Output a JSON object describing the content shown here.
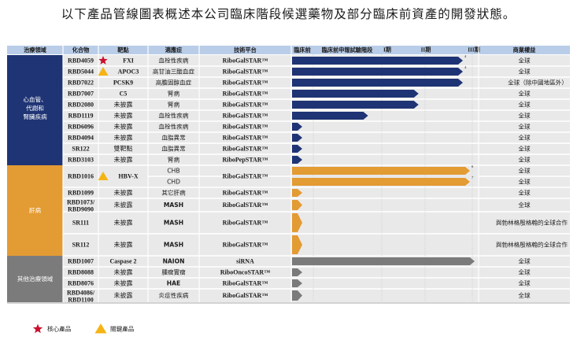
{
  "title": "以下產品管線圖表概述本公司臨床階段候選藥物及部分臨床前資產的開發狀態。",
  "headers": [
    "治療領域",
    "化合物",
    "靶點",
    "適應症",
    "技術平台",
    "臨床前",
    "臨床前申報試驗階段",
    "I期",
    "II期",
    "III期",
    "商業權益"
  ],
  "groups": [
    {
      "label": "心血管、代謝和腎臟疾病",
      "color": "#1f3474"
    },
    {
      "label": "肝病",
      "color": "#e39b34"
    },
    {
      "label": "其他治療領域",
      "color": "#7b7b7b"
    }
  ],
  "rows": [
    {
      "compound": "RBD4059",
      "marker": "star",
      "target": "FXI",
      "indication": "血栓性疾病",
      "platform": "RiboGalSTAR™",
      "rights": "全球",
      "group": 0
    },
    {
      "compound": "RBD5044",
      "marker": "triangle",
      "target": "APOC3",
      "indication": "高甘油三酯血症",
      "platform": "RiboGalSTAR™",
      "rights": "全球",
      "group": 0
    },
    {
      "compound": "RBD7022",
      "marker": "",
      "target": "PCSK9",
      "indication": "高膽固醇血症",
      "platform": "RiboGalSTAR™",
      "rights": "全球（除中國地區外）",
      "group": 0
    },
    {
      "compound": "RBD7007",
      "marker": "",
      "target": "C5",
      "indication": "腎病",
      "platform": "RiboGalSTAR™",
      "rights": "全球",
      "group": 0
    },
    {
      "compound": "RBD2080",
      "marker": "",
      "target": "未披露",
      "indication": "腎病",
      "platform": "RiboGalSTAR™",
      "rights": "全球",
      "group": 0
    },
    {
      "compound": "RBD1119",
      "marker": "",
      "target": "未披露",
      "indication": "血栓性疾病",
      "platform": "RiboGalSTAR™",
      "rights": "全球",
      "group": 0
    },
    {
      "compound": "RBD6096",
      "marker": "",
      "target": "未披露",
      "indication": "血栓性疾病",
      "platform": "RiboGalSTAR™",
      "rights": "全球",
      "group": 0
    },
    {
      "compound": "RBD4094",
      "marker": "",
      "target": "未披露",
      "indication": "血脂異常",
      "platform": "RiboGalSTAR™",
      "rights": "全球",
      "group": 0
    },
    {
      "compound": "SR122",
      "marker": "",
      "target": "雙靶點",
      "indication": "血脂異常",
      "platform": "RiboGalSTAR™",
      "rights": "全球",
      "group": 0
    },
    {
      "compound": "RBD3103",
      "marker": "",
      "target": "未披露",
      "indication": "腎病",
      "platform": "RiboPepSTAR™",
      "rights": "全球",
      "group": 0
    },
    {
      "compound": "RBD1016",
      "marker": "triangle",
      "target": "HBV-X",
      "indication": "CHB",
      "platform": "RiboGalSTAR™",
      "rights": "全球",
      "group": 1
    },
    {
      "compound": "",
      "marker": "",
      "target": "",
      "indication": "CHD",
      "platform": "",
      "rights": "全球",
      "group": 1
    },
    {
      "compound": "RBD1099",
      "marker": "",
      "target": "未披露",
      "indication": "其它肝病",
      "platform": "RiboGalSTAR™",
      "rights": "全球",
      "group": 1
    },
    {
      "compound": "RBD1073/ RBD9090",
      "marker": "",
      "target": "未披露",
      "indication": "MASH",
      "platform": "RiboGalSTAR™",
      "rights": "全球",
      "group": 1
    },
    {
      "compound": "SR111",
      "marker": "",
      "target": "未披露",
      "indication": "MASH",
      "platform": "RiboGalSTAR™",
      "rights": "與勃林格殷格翰的全球合作",
      "group": 1
    },
    {
      "compound": "SR112",
      "marker": "",
      "target": "未披露",
      "indication": "MASH",
      "platform": "RiboGalSTAR™",
      "rights": "與勃林格殷格翰的全球合作",
      "group": 1
    },
    {
      "compound": "RBD1007",
      "marker": "",
      "target": "Caspase 2",
      "indication": "NAION",
      "platform": "siRNA",
      "rights": "全球",
      "group": 2
    },
    {
      "compound": "RBD8088",
      "marker": "",
      "target": "未披露",
      "indication": "腫瘤實瘤",
      "platform": "RiboOncoSTAR™",
      "rights": "全球",
      "group": 2
    },
    {
      "compound": "RBD8076",
      "marker": "",
      "target": "未披露",
      "indication": "HAE",
      "platform": "RiboGalSTAR™",
      "rights": "全球",
      "group": 2
    },
    {
      "compound": "RBD4086/ RBD1100",
      "marker": "",
      "target": "未披露",
      "indication": "炎症性疾病",
      "platform": "RiboGalSTAR™",
      "rights": "全球",
      "group": 2
    }
  ],
  "legend": [
    {
      "marker": "star",
      "label": "核心產品",
      "color": "#c8102e"
    },
    {
      "marker": "triangle",
      "label": "關鍵產品",
      "color": "#f5b415"
    }
  ],
  "colors": {
    "header_bg": "#b9cde8",
    "row_bg": "#e9e9e9",
    "grid": "#ffffff"
  },
  "chart_data": {
    "type": "bar",
    "orientation": "horizontal",
    "stages": [
      "臨床前",
      "臨床前申報試驗階段",
      "I期",
      "II期",
      "III期"
    ],
    "note": "Bar value = stage progress (0 = start of 臨床前, 1 = start of 臨床前申報試驗階段, 2 = start of I期, 3 = start of II期, 4 = start of III期)",
    "bars": [
      {
        "compound": "RBD4059",
        "indication": "血栓性疾病",
        "progress": 3.8,
        "sup": "4",
        "color": "#1f3474"
      },
      {
        "compound": "RBD5044",
        "indication": "高甘油三酯血症",
        "progress": 3.8,
        "sup": "4",
        "color": "#1f3474"
      },
      {
        "compound": "RBD7022",
        "indication": "高膽固醇血症",
        "progress": 3.8,
        "sup": "",
        "color": "#1f3474"
      },
      {
        "compound": "RBD7007",
        "indication": "腎病",
        "progress": 2.85,
        "sup": "",
        "color": "#1f3474"
      },
      {
        "compound": "RBD2080",
        "indication": "腎病",
        "progress": 2.85,
        "sup": "",
        "color": "#1f3474"
      },
      {
        "compound": "RBD1119",
        "indication": "血栓性疾病",
        "progress": 1.8,
        "sup": "",
        "color": "#1f3474"
      },
      {
        "compound": "RBD6096",
        "indication": "血栓性疾病",
        "progress": 0.5,
        "sup": "",
        "color": "#1f3474"
      },
      {
        "compound": "RBD4094",
        "indication": "血脂異常",
        "progress": 0.5,
        "sup": "",
        "color": "#1f3474"
      },
      {
        "compound": "SR122",
        "indication": "血脂異常",
        "progress": 0.5,
        "sup": "",
        "color": "#1f3474"
      },
      {
        "compound": "RBD3103",
        "indication": "腎病",
        "progress": 0.5,
        "sup": "",
        "color": "#1f3474"
      },
      {
        "compound": "RBD1016",
        "indication": "CHB",
        "progress": 3.95,
        "sup": "6",
        "color": "#e39b34"
      },
      {
        "compound": "RBD1016",
        "indication": "CHD",
        "progress": 3.95,
        "sup": "7",
        "color": "#e39b34"
      },
      {
        "compound": "RBD1099",
        "indication": "其它肝病",
        "progress": 0.5,
        "sup": "",
        "color": "#e39b34"
      },
      {
        "compound": "RBD1073/ RBD9090",
        "indication": "MASH",
        "progress": 0.5,
        "sup": "",
        "color": "#e39b34"
      },
      {
        "compound": "SR111",
        "indication": "MASH",
        "progress": 0.5,
        "sup": "",
        "color": "#e39b34"
      },
      {
        "compound": "SR112",
        "indication": "MASH",
        "progress": 0.5,
        "sup": "",
        "color": "#e39b34"
      },
      {
        "compound": "RBD1007",
        "indication": "NAION",
        "progress": 4.05,
        "sup": "",
        "color": "#7b7b7b"
      },
      {
        "compound": "RBD8088",
        "indication": "腫瘤實瘤",
        "progress": 0.5,
        "sup": "",
        "color": "#7b7b7b"
      },
      {
        "compound": "RBD8076",
        "indication": "HAE",
        "progress": 0.5,
        "sup": "",
        "color": "#7b7b7b"
      },
      {
        "compound": "RBD4086/ RBD1100",
        "indication": "炎症性疾病",
        "progress": 0.5,
        "sup": "",
        "color": "#7b7b7b"
      }
    ]
  }
}
